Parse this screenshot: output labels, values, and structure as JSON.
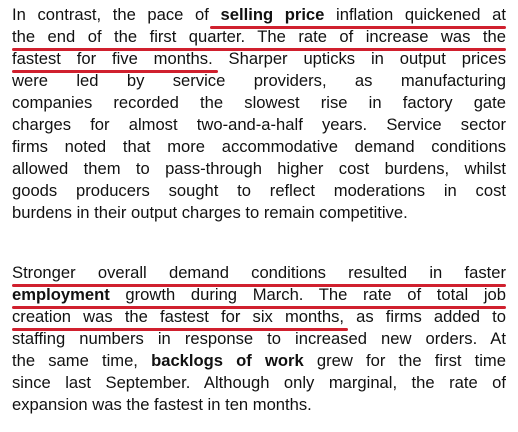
{
  "para1": {
    "l1a": "In contrast, the pace of",
    "l1b": "selling price",
    "l1c": "inflation quickened at",
    "l2": "the end of the first quarter. The rate of increase was the",
    "l3": "fastest for five months. Sharper upticks in output prices",
    "l4": "were led by service providers, as manufacturing",
    "l5": "companies recorded the slowest rise in factory gate",
    "l6": "charges for almost two-and-a-half years. Service sector",
    "l7": "firms noted that more accommodative demand conditions",
    "l8": "allowed them to pass-through higher cost burdens, whilst",
    "l9": "goods producers sought to reflect moderations in cost",
    "l10": "burdens in their output charges to remain competitive."
  },
  "para2": {
    "l1": "Stronger overall demand conditions resulted in faster",
    "l2a": "employment",
    "l2b": "growth during March. The rate of total job",
    "l3": "creation was the fastest for six months, as firms added to",
    "l4": "staffing numbers in response to increased new orders. At",
    "l5a": "the same time,",
    "l5b": "backlogs of work",
    "l5c": "grew for the first time",
    "l6": "since last September. Although only marginal, the rate of",
    "l7": "expansion was the fastest in ten months."
  },
  "colors": {
    "underline": "#d0202e",
    "text": "#111111"
  }
}
